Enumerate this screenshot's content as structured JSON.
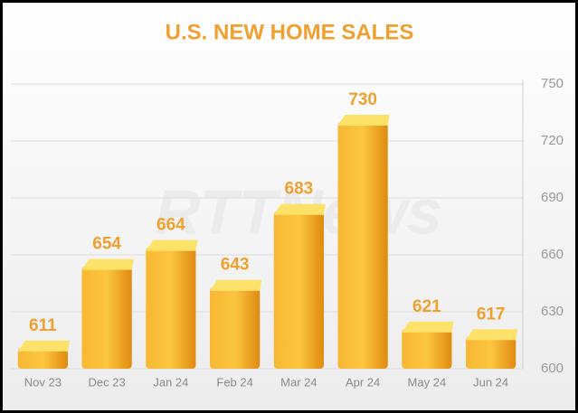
{
  "chart_data": {
    "type": "bar",
    "title": "U.S. NEW HOME SALES",
    "watermark": "RTTNews",
    "categories": [
      "Nov 23",
      "Dec 23",
      "Jan 24",
      "Feb 24",
      "Mar 24",
      "Apr 24",
      "May 24",
      "Jun 24"
    ],
    "values": [
      611,
      654,
      664,
      643,
      683,
      730,
      621,
      617
    ],
    "color": "#f5a623",
    "ylim": [
      600,
      750
    ],
    "yticks": [
      600,
      630,
      660,
      690,
      720,
      750
    ],
    "grid": true,
    "y_axis_side": "right"
  }
}
